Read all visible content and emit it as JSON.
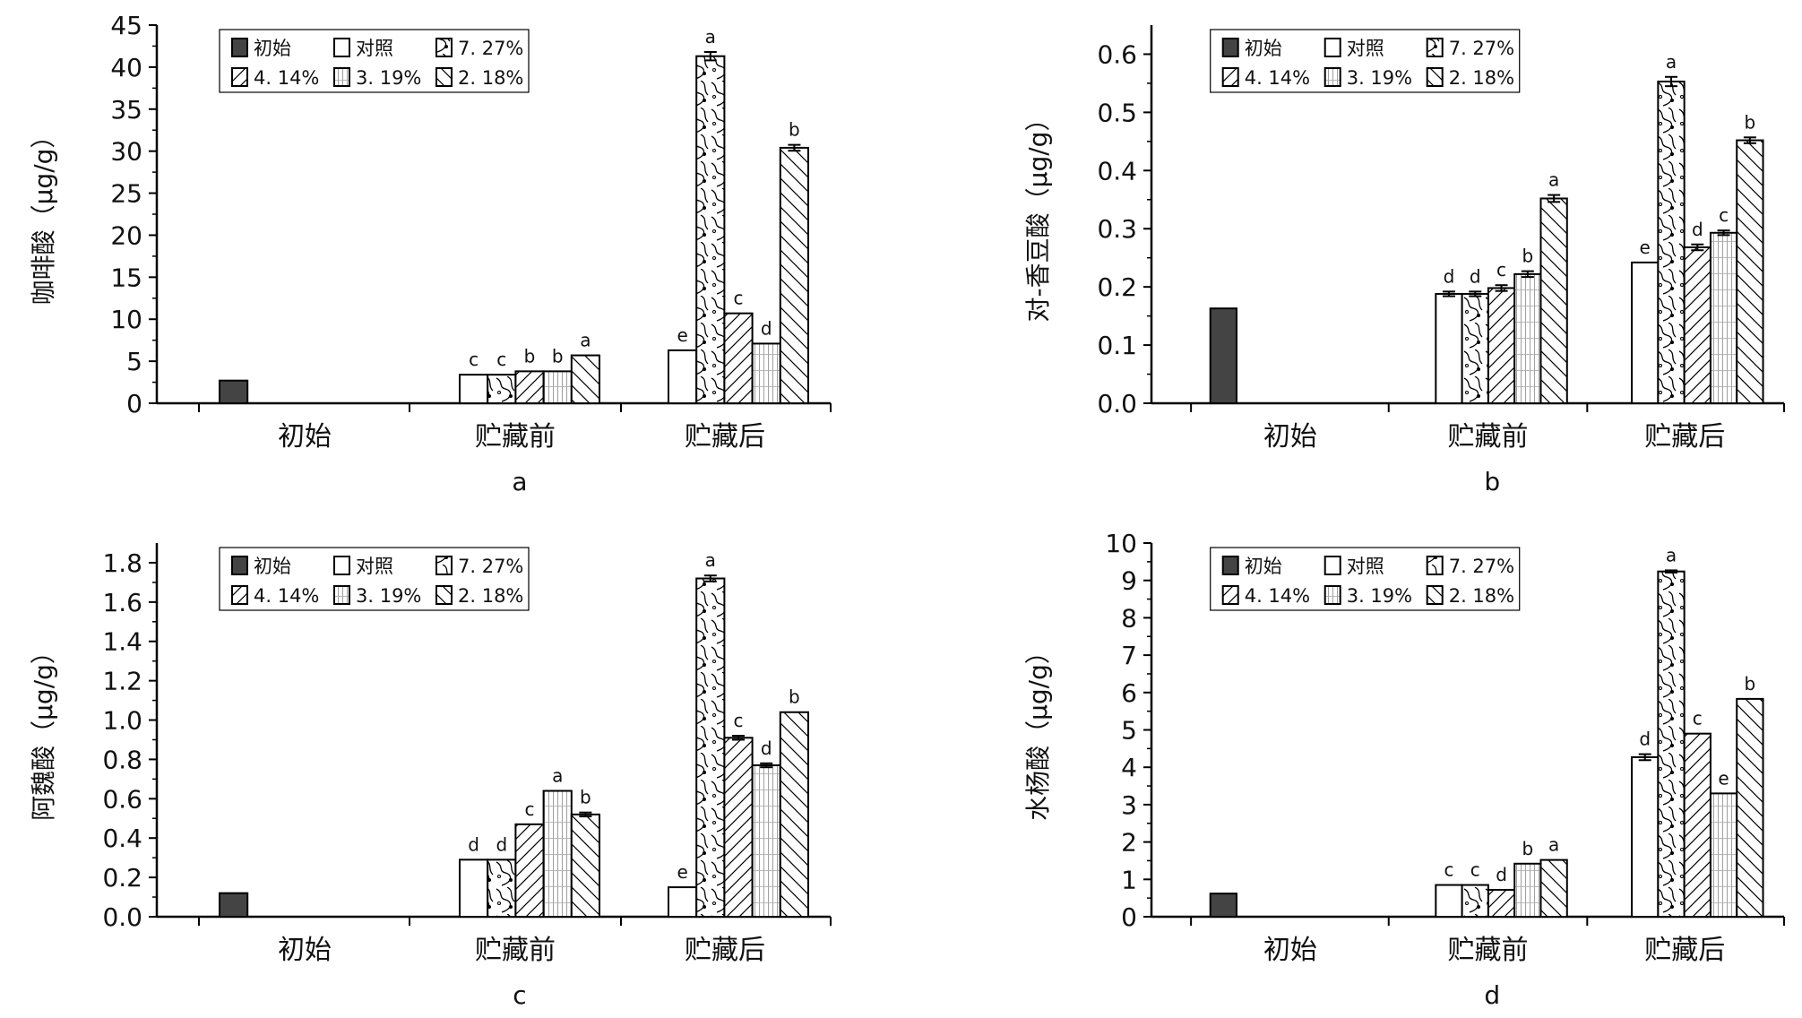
{
  "legend": [
    "初始",
    "对照",
    "7.27%",
    "4.14%",
    "3.19%",
    "2.18%"
  ],
  "legend_display": [
    "初始",
    "对照",
    "7. 27%",
    "4. 14%",
    "3. 19%",
    "2. 18%"
  ],
  "chart_data": [
    {
      "type": "bar",
      "title": "a",
      "ylabel": "咖啡酸（μg/g）",
      "ylim": [
        0,
        45
      ],
      "ytick_step": 5,
      "ytick_decimals": 0,
      "categories": [
        "初始",
        "贮藏前",
        "贮藏后"
      ],
      "initial": 2.7,
      "series_groups": [
        {
          "category": "贮藏前",
          "values": [
            3.4,
            3.4,
            3.8,
            3.8,
            5.7
          ],
          "errors": [
            0,
            0,
            0,
            0,
            0
          ],
          "letters": [
            "c",
            "c",
            "b",
            "b",
            "a"
          ]
        },
        {
          "category": "贮藏后",
          "values": [
            6.3,
            41.3,
            10.7,
            7.1,
            30.4
          ],
          "errors": [
            0,
            0.5,
            0,
            0,
            0.35
          ],
          "letters": [
            "e",
            "a",
            "c",
            "d",
            "b"
          ]
        }
      ]
    },
    {
      "type": "bar",
      "title": "b",
      "ylabel": "对-香豆酸（μg/g）",
      "ylim": [
        0,
        0.65
      ],
      "ytick_step": 0.1,
      "ytick_decimals": 1,
      "categories": [
        "初始",
        "贮藏前",
        "贮藏后"
      ],
      "initial": 0.163,
      "series_groups": [
        {
          "category": "贮藏前",
          "values": [
            0.188,
            0.188,
            0.198,
            0.222,
            0.352
          ],
          "errors": [
            0.004,
            0.004,
            0.005,
            0.005,
            0.006
          ],
          "letters": [
            "d",
            "d",
            "c",
            "b",
            "a"
          ]
        },
        {
          "category": "贮藏后",
          "values": [
            0.242,
            0.553,
            0.268,
            0.293,
            0.452
          ],
          "errors": [
            0,
            0.008,
            0.005,
            0.004,
            0.005
          ],
          "letters": [
            "e",
            "a",
            "d",
            "c",
            "b"
          ]
        }
      ]
    },
    {
      "type": "bar",
      "title": "c",
      "ylabel": "阿魏酸（μg/g）",
      "ylim": [
        0,
        1.9
      ],
      "ytick_step": 0.2,
      "ytick_decimals": 1,
      "categories": [
        "初始",
        "贮藏前",
        "贮藏后"
      ],
      "initial": 0.12,
      "series_groups": [
        {
          "category": "贮藏前",
          "values": [
            0.29,
            0.29,
            0.47,
            0.64,
            0.52
          ],
          "errors": [
            0,
            0,
            0,
            0,
            0.01
          ],
          "letters": [
            "d",
            "d",
            "c",
            "a",
            "b"
          ]
        },
        {
          "category": "贮藏后",
          "values": [
            0.15,
            1.72,
            0.91,
            0.77,
            1.04
          ],
          "errors": [
            0,
            0.015,
            0.01,
            0.01,
            0
          ],
          "letters": [
            "e",
            "a",
            "c",
            "d",
            "b"
          ]
        }
      ]
    },
    {
      "type": "bar",
      "title": "d",
      "ylabel": "水杨酸（μg/g）",
      "ylim": [
        0,
        10
      ],
      "ytick_step": 1,
      "ytick_decimals": 0,
      "categories": [
        "初始",
        "贮藏前",
        "贮藏后"
      ],
      "initial": 0.62,
      "series_groups": [
        {
          "category": "贮藏前",
          "values": [
            0.85,
            0.85,
            0.72,
            1.42,
            1.52
          ],
          "errors": [
            0,
            0,
            0,
            0,
            0
          ],
          "letters": [
            "c",
            "c",
            "d",
            "b",
            "a"
          ]
        },
        {
          "category": "贮藏后",
          "values": [
            4.27,
            9.24,
            4.9,
            3.3,
            5.83
          ],
          "errors": [
            0.08,
            0.03,
            0,
            0,
            0
          ],
          "letters": [
            "d",
            "a",
            "c",
            "e",
            "b"
          ]
        }
      ]
    }
  ]
}
